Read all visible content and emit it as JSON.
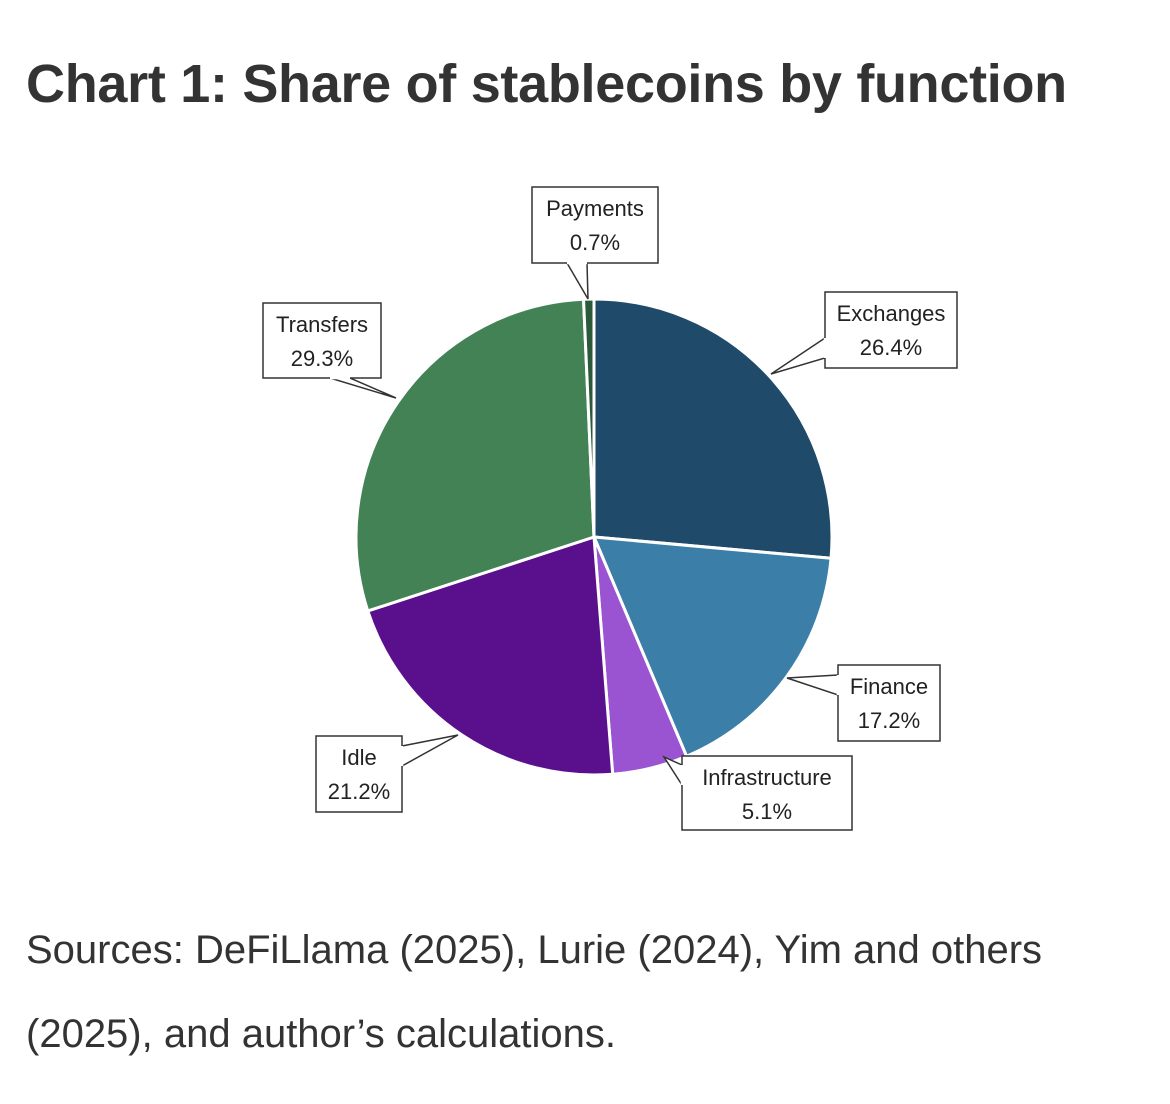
{
  "chart_data": {
    "type": "pie",
    "title": "Chart 1: Share of stablecoins by function",
    "unit": "%",
    "slices": [
      {
        "label": "Exchanges",
        "value": 26.4,
        "display": "26.4%",
        "color": "#1f4a6a"
      },
      {
        "label": "Finance",
        "value": 17.2,
        "display": "17.2%",
        "color": "#3b7fa8"
      },
      {
        "label": "Infrastructure",
        "value": 5.1,
        "display": "5.1%",
        "color": "#9a54d1"
      },
      {
        "label": "Idle",
        "value": 21.2,
        "display": "21.2%",
        "color": "#5a0f8c"
      },
      {
        "label": "Transfers",
        "value": 29.3,
        "display": "29.3%",
        "color": "#438255"
      },
      {
        "label": "Payments",
        "value": 0.7,
        "display": "0.7%",
        "color": "#2a5a3a"
      }
    ]
  },
  "footer": {
    "sources_line1": "Sources: DeFiLlama (2025), Lurie (2024), Yim and others",
    "sources_line2": "(2025), and author’s calculations."
  }
}
